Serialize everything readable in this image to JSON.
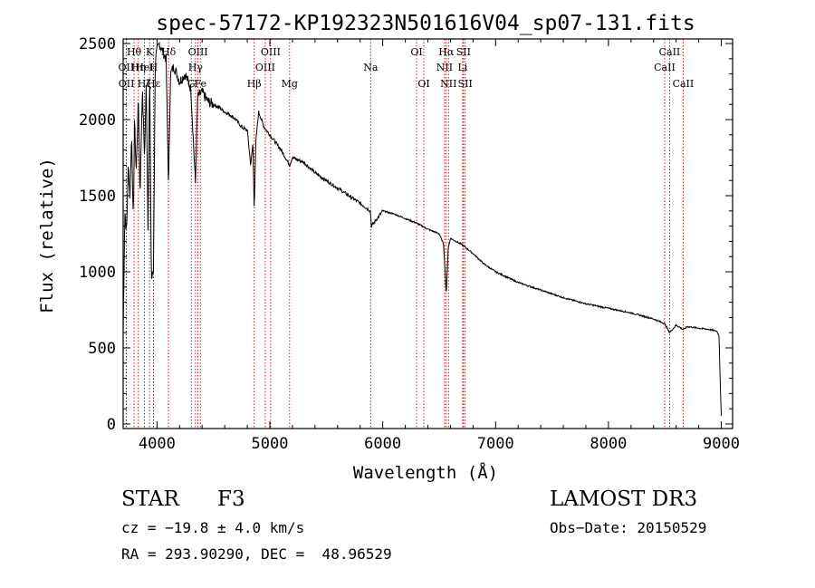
{
  "chart_data": {
    "type": "line",
    "title": "spec-57172-KP192323N501616V04_sp07-131.fits",
    "xlabel": "Wavelength (Å)",
    "ylabel": "Flux (relative)",
    "xlim": [
      3700,
      9100
    ],
    "ylim": [
      -30,
      2530
    ],
    "xticks": [
      "4000",
      "5000",
      "6000",
      "7000",
      "8000",
      "9000"
    ],
    "xtick_values": [
      4000,
      5000,
      6000,
      7000,
      8000,
      9000
    ],
    "yticks": [
      "0",
      "500",
      "1000",
      "1500",
      "2000",
      "2500"
    ],
    "ytick_values": [
      0,
      500,
      1000,
      1500,
      2000,
      2500
    ],
    "spectrum": {
      "name": "flux",
      "x": [
        3700,
        3715,
        3730,
        3745,
        3760,
        3775,
        3790,
        3800,
        3815,
        3835,
        3850,
        3870,
        3890,
        3905,
        3920,
        3935,
        3950,
        3968,
        3985,
        4000,
        4020,
        4050,
        4080,
        4102,
        4120,
        4150,
        4200,
        4250,
        4300,
        4340,
        4360,
        4400,
        4450,
        4500,
        4550,
        4600,
        4650,
        4700,
        4750,
        4800,
        4830,
        4850,
        4861,
        4875,
        4900,
        4950,
        5000,
        5100,
        5175,
        5200,
        5300,
        5400,
        5500,
        5600,
        5700,
        5800,
        5890,
        5900,
        6000,
        6100,
        6200,
        6300,
        6400,
        6500,
        6540,
        6563,
        6580,
        6600,
        6700,
        6800,
        6900,
        7000,
        7200,
        7400,
        7600,
        7800,
        8000,
        8200,
        8400,
        8498,
        8542,
        8600,
        8662,
        8700,
        8800,
        8900,
        8960,
        8980,
        8990,
        9000
      ],
      "y": [
        600,
        1400,
        1250,
        1700,
        1500,
        1900,
        1300,
        2000,
        1650,
        2150,
        1500,
        2200,
        1750,
        2250,
        1300,
        2300,
        950,
        1000,
        2400,
        2450,
        2500,
        2450,
        2400,
        1550,
        2300,
        2350,
        2250,
        2300,
        2200,
        1580,
        2150,
        2180,
        2120,
        2100,
        2080,
        2050,
        2030,
        2000,
        1950,
        1930,
        1700,
        1850,
        1400,
        1850,
        2050,
        1950,
        1900,
        1800,
        1700,
        1750,
        1720,
        1650,
        1600,
        1550,
        1500,
        1450,
        1400,
        1300,
        1400,
        1380,
        1350,
        1320,
        1280,
        1250,
        1180,
        850,
        1150,
        1220,
        1180,
        1120,
        1050,
        1000,
        930,
        880,
        830,
        790,
        760,
        730,
        690,
        660,
        600,
        650,
        620,
        640,
        630,
        620,
        610,
        580,
        300,
        50
      ]
    },
    "lines": [
      {
        "label": "Hθ",
        "wave": 3797,
        "row": 0
      },
      {
        "label": "OII",
        "wave": 3727,
        "row": 1
      },
      {
        "label": "OII",
        "wave": 3729,
        "row": 2
      },
      {
        "label": "Hη",
        "wave": 3835,
        "row": 1
      },
      {
        "label": "Hζ",
        "wave": 3889,
        "row": 2
      },
      {
        "label": "K",
        "wave": 3934,
        "row": 0
      },
      {
        "label": "HeI",
        "wave": 3889,
        "row": 1
      },
      {
        "label": "Hε",
        "wave": 3970,
        "row": 2
      },
      {
        "label": "H",
        "wave": 3968,
        "row": 1
      },
      {
        "label": "Hδ",
        "wave": 4102,
        "row": 0
      },
      {
        "label": "G",
        "wave": 4304,
        "row": 2
      },
      {
        "label": "Hγ",
        "wave": 4341,
        "row": 1
      },
      {
        "label": "OIII",
        "wave": 4363,
        "row": 0
      },
      {
        "label": "Fe",
        "wave": 4384,
        "row": 2
      },
      {
        "label": "Hβ",
        "wave": 4861,
        "row": 2
      },
      {
        "label": "OIII",
        "wave": 4959,
        "row": 1
      },
      {
        "label": "OIII",
        "wave": 5007,
        "row": 0
      },
      {
        "label": "Mg",
        "wave": 5175,
        "row": 2
      },
      {
        "label": "Na",
        "wave": 5893,
        "row": 1
      },
      {
        "label": "OI",
        "wave": 6300,
        "row": 0
      },
      {
        "label": "OI",
        "wave": 6364,
        "row": 2
      },
      {
        "label": "Hα",
        "wave": 6563,
        "row": 0
      },
      {
        "label": "NII",
        "wave": 6548,
        "row": 1
      },
      {
        "label": "NII",
        "wave": 6583,
        "row": 2
      },
      {
        "label": "Li",
        "wave": 6708,
        "row": 1
      },
      {
        "label": "SII",
        "wave": 6716,
        "row": 0
      },
      {
        "label": "SII",
        "wave": 6731,
        "row": 2
      },
      {
        "label": "CaII",
        "wave": 8498,
        "row": 1
      },
      {
        "label": "CaII",
        "wave": 8542,
        "row": 0
      },
      {
        "label": "CaII",
        "wave": 8662,
        "row": 2
      }
    ]
  },
  "info": {
    "object_class": "STAR",
    "subclass": "F3",
    "survey": "LAMOST DR3",
    "redshift": "cz = −19.8 ± 4.0 km/s",
    "obs_date": "Obs−Date: 20150529",
    "coords": "RA = 293.90290, DEC =  48.96529"
  },
  "colors": {
    "line": "#000000",
    "marker": "#cc0000",
    "axis": "#000000"
  }
}
